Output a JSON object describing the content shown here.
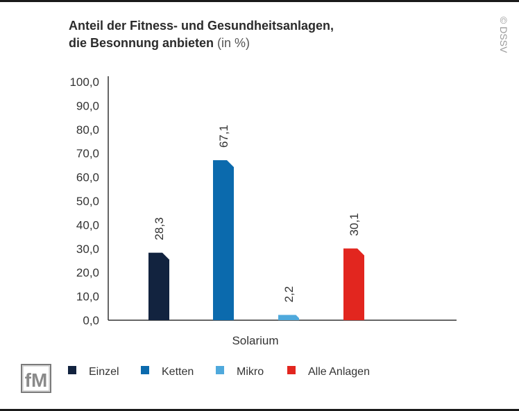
{
  "title_line1": "Anteil der Fitness- und Gesundheitsanlagen,",
  "title_line2": "die Besonnung anbieten",
  "title_unit": "(in %)",
  "credit": "© DSSV",
  "logo_text": "fM",
  "chart_data": {
    "type": "bar",
    "title": "Anteil der Fitness- und Gesundheitsanlagen, die Besonnung anbieten (in %)",
    "categories": [
      "Solarium"
    ],
    "series": [
      {
        "name": "Einzel",
        "values": [
          28.3
        ],
        "color": "#12233f"
      },
      {
        "name": "Ketten",
        "values": [
          67.1
        ],
        "color": "#0b6aad"
      },
      {
        "name": "Mikro",
        "values": [
          2.2
        ],
        "color": "#4fa9dc"
      },
      {
        "name": "Alle Anlagen",
        "values": [
          30.1
        ],
        "color": "#e2261f"
      }
    ],
    "data_labels": [
      "28,3",
      "67,1",
      "2,2",
      "30,1"
    ],
    "yticks": [
      "0,0",
      "10,0",
      "20,0",
      "30,0",
      "40,0",
      "50,0",
      "60,0",
      "70,0",
      "80,0",
      "90,0",
      "100,0"
    ],
    "ylim": [
      0,
      100
    ],
    "xlabel": "",
    "ylabel": "",
    "grid": false,
    "legend_position": "bottom"
  }
}
